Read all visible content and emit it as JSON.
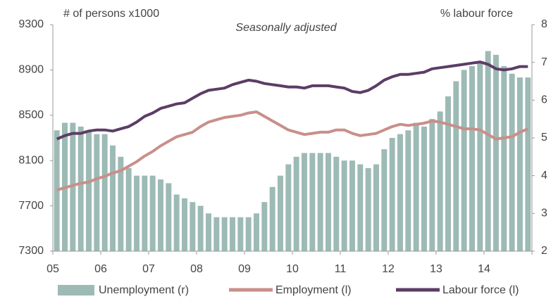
{
  "chart_data": {
    "type": "bar-line",
    "subtitle": "Seasonally adjusted",
    "ylabel": "# of persons x1000",
    "y2label": "% labour force",
    "categories": [
      "05",
      null,
      null,
      null,
      null,
      null,
      "06",
      null,
      null,
      null,
      null,
      null,
      "07",
      null,
      null,
      null,
      null,
      null,
      "08",
      null,
      null,
      null,
      null,
      null,
      "09",
      null,
      null,
      null,
      null,
      null,
      "10",
      null,
      null,
      null,
      null,
      null,
      "11",
      null,
      null,
      null,
      null,
      null,
      "12",
      null,
      null,
      null,
      null,
      null,
      "13",
      null,
      null,
      null,
      null,
      null,
      "14",
      null,
      null,
      null,
      null,
      null
    ],
    "ylim": [
      7300,
      9300
    ],
    "yticks": [
      7300,
      7700,
      8100,
      8500,
      8900,
      9300
    ],
    "y2lim": [
      2,
      8
    ],
    "y2ticks": [
      2,
      3,
      4,
      5,
      6,
      7,
      8
    ],
    "series": [
      {
        "name": "Unemployment (r)",
        "kind": "bar",
        "axis": "y2",
        "color": "#9dbab5",
        "values": [
          5.2,
          5.4,
          5.4,
          5.3,
          5.2,
          5.1,
          5.1,
          4.8,
          4.5,
          4.2,
          4.0,
          4.0,
          4.0,
          3.9,
          3.8,
          3.5,
          3.4,
          3.3,
          3.2,
          3.0,
          2.9,
          2.9,
          2.9,
          2.9,
          2.9,
          3.0,
          3.3,
          3.7,
          4.0,
          4.3,
          4.5,
          4.6,
          4.6,
          4.6,
          4.6,
          4.5,
          4.4,
          4.4,
          4.3,
          4.2,
          4.3,
          4.7,
          5.0,
          5.1,
          5.2,
          5.4,
          5.3,
          5.5,
          5.7,
          6.1,
          6.5,
          6.8,
          6.9,
          7.0,
          7.3,
          7.2,
          6.9,
          6.7,
          6.6,
          6.6
        ]
      },
      {
        "name": "Employment (l)",
        "kind": "line",
        "color": "#c98f8a",
        "values": [
          7840,
          7860,
          7880,
          7900,
          7910,
          7940,
          7960,
          7990,
          8010,
          8050,
          8090,
          8140,
          8180,
          8230,
          8270,
          8310,
          8330,
          8350,
          8400,
          8440,
          8460,
          8480,
          8490,
          8500,
          8520,
          8530,
          8490,
          8450,
          8410,
          8370,
          8350,
          8330,
          8340,
          8350,
          8350,
          8370,
          8370,
          8340,
          8320,
          8330,
          8340,
          8370,
          8400,
          8420,
          8410,
          8420,
          8430,
          8450,
          8440,
          8420,
          8400,
          8380,
          8380,
          8370,
          8330,
          8290,
          8300,
          8310,
          8350,
          8380
        ]
      },
      {
        "name": "Labour force (l)",
        "kind": "line",
        "color": "#5c3d66",
        "values": [
          8290,
          8320,
          8340,
          8340,
          8360,
          8370,
          8370,
          8360,
          8380,
          8400,
          8440,
          8490,
          8520,
          8560,
          8580,
          8600,
          8610,
          8650,
          8690,
          8720,
          8730,
          8740,
          8770,
          8790,
          8810,
          8800,
          8780,
          8770,
          8760,
          8750,
          8750,
          8740,
          8760,
          8760,
          8760,
          8750,
          8740,
          8710,
          8700,
          8720,
          8760,
          8810,
          8840,
          8860,
          8860,
          8870,
          8880,
          8910,
          8920,
          8930,
          8940,
          8950,
          8960,
          8970,
          8950,
          8910,
          8900,
          8910,
          8930,
          8930
        ]
      }
    ]
  }
}
